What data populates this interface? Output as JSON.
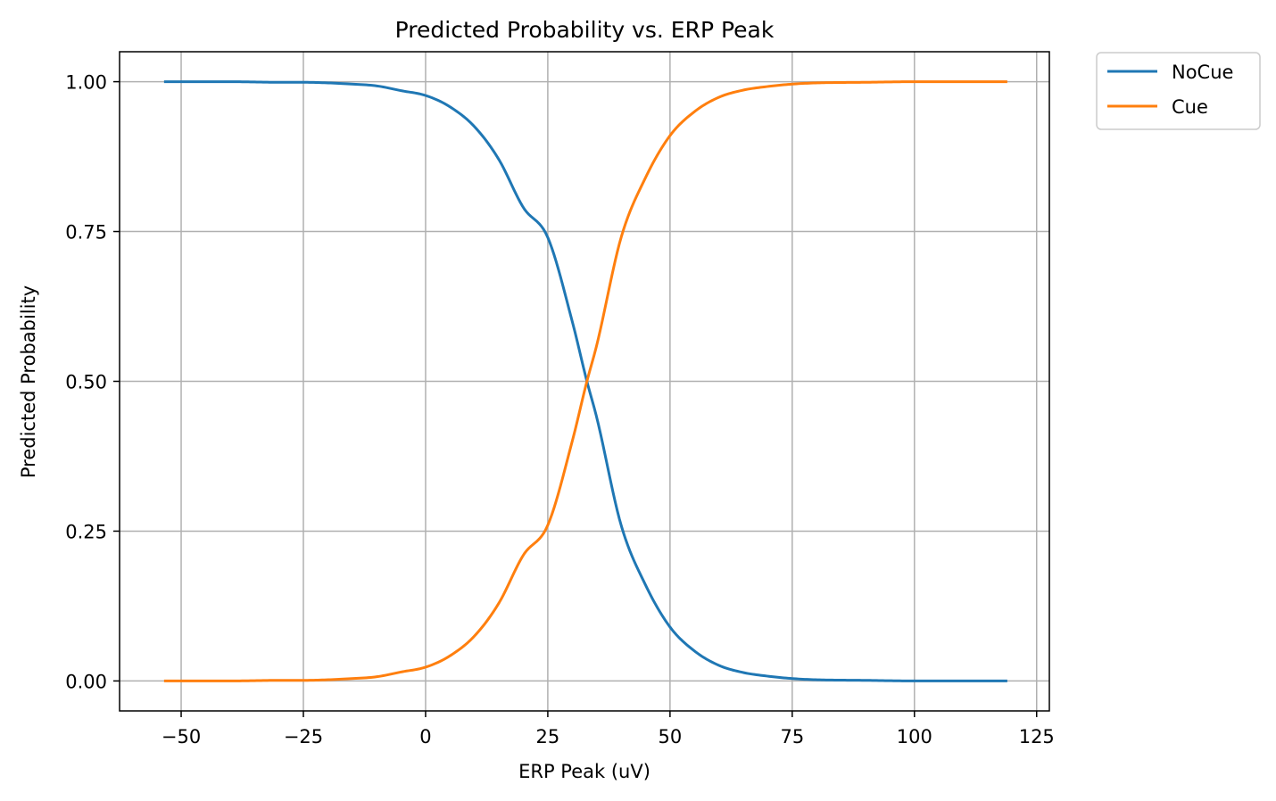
{
  "chart_data": {
    "type": "line",
    "title": "Predicted Probability vs. ERP Peak",
    "xlabel": "ERP Peak (uV)",
    "ylabel": "Predicted Probability",
    "xlim": [
      -62.6,
      127.6
    ],
    "ylim": [
      -0.05,
      1.05
    ],
    "xticks": [
      -50,
      -25,
      0,
      25,
      50,
      75,
      100,
      125
    ],
    "xtick_labels": [
      "−50",
      "−25",
      "0",
      "25",
      "50",
      "75",
      "100",
      "125"
    ],
    "yticks": [
      0.0,
      0.25,
      0.5,
      0.75,
      1.0
    ],
    "ytick_labels": [
      "0.00",
      "0.25",
      "0.50",
      "0.75",
      "1.00"
    ],
    "grid": true,
    "legend_position": "outside top-right",
    "x": [
      -53.5,
      -50,
      -40,
      -30,
      -25,
      -20,
      -15,
      -10,
      -5,
      0,
      5,
      10,
      15,
      20,
      25,
      30,
      33,
      35,
      40,
      45,
      50,
      55,
      60,
      65,
      70,
      75,
      80,
      90,
      100,
      110,
      119
    ],
    "series": [
      {
        "name": "NoCue",
        "color": "#1f77b4",
        "values": [
          1.0,
          1.0,
          1.0,
          0.999,
          0.999,
          0.998,
          0.996,
          0.993,
          0.985,
          0.977,
          0.958,
          0.925,
          0.87,
          0.79,
          0.74,
          0.6,
          0.5,
          0.44,
          0.26,
          0.16,
          0.09,
          0.05,
          0.026,
          0.014,
          0.008,
          0.004,
          0.002,
          0.001,
          0.0,
          0.0,
          0.0
        ]
      },
      {
        "name": "Cue",
        "color": "#ff7f0e",
        "values": [
          0.0,
          0.0,
          0.0,
          0.001,
          0.001,
          0.002,
          0.004,
          0.007,
          0.015,
          0.023,
          0.042,
          0.075,
          0.13,
          0.21,
          0.26,
          0.4,
          0.5,
          0.56,
          0.74,
          0.84,
          0.91,
          0.95,
          0.974,
          0.986,
          0.992,
          0.996,
          0.998,
          0.999,
          1.0,
          1.0,
          1.0
        ]
      }
    ]
  }
}
